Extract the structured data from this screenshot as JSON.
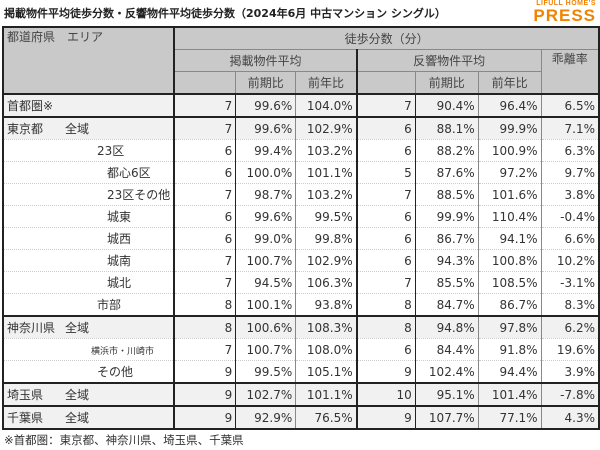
{
  "title": "掲載物件平均徒歩分数・反響物件平均徒歩分数（2024年6月 中古マンション シングル）",
  "logo": {
    "small": "LIFULL HOME'S",
    "big": "PRESS"
  },
  "header": {
    "area": "都道府県　エリア",
    "group": "徒歩分数（分）",
    "listed": "掲載物件平均",
    "response": "反響物件平均",
    "gap": "乖離率",
    "qoq": "前期比",
    "yoy": "前年比"
  },
  "rows": [
    {
      "pref": "首都圏※",
      "area": "",
      "indent": 0,
      "shade": true,
      "top": true,
      "v": [
        "7",
        "99.6%",
        "104.0%",
        "7",
        "90.4%",
        "96.4%",
        "6.5%"
      ]
    },
    {
      "pref": "東京都",
      "area": "全域",
      "indent": 0,
      "shade": true,
      "top": true,
      "v": [
        "7",
        "99.6%",
        "102.9%",
        "6",
        "88.1%",
        "99.9%",
        "7.1%"
      ]
    },
    {
      "pref": "",
      "area": "23区",
      "indent": 1,
      "v": [
        "6",
        "99.4%",
        "103.2%",
        "6",
        "88.2%",
        "100.9%",
        "6.3%"
      ]
    },
    {
      "pref": "",
      "area": "都心6区",
      "indent": 2,
      "v": [
        "6",
        "100.0%",
        "101.1%",
        "5",
        "87.6%",
        "97.2%",
        "9.7%"
      ]
    },
    {
      "pref": "",
      "area": "23区その他",
      "indent": 2,
      "v": [
        "7",
        "98.7%",
        "103.2%",
        "7",
        "88.5%",
        "101.6%",
        "3.8%"
      ]
    },
    {
      "pref": "",
      "area": "城東",
      "indent": 2,
      "v": [
        "6",
        "99.6%",
        "99.5%",
        "6",
        "99.9%",
        "110.4%",
        "-0.4%"
      ]
    },
    {
      "pref": "",
      "area": "城西",
      "indent": 2,
      "v": [
        "6",
        "99.0%",
        "99.8%",
        "6",
        "86.7%",
        "94.1%",
        "6.6%"
      ]
    },
    {
      "pref": "",
      "area": "城南",
      "indent": 2,
      "v": [
        "7",
        "100.7%",
        "102.9%",
        "6",
        "94.3%",
        "100.8%",
        "10.2%"
      ]
    },
    {
      "pref": "",
      "area": "城北",
      "indent": 2,
      "v": [
        "7",
        "94.5%",
        "106.3%",
        "7",
        "85.5%",
        "108.5%",
        "-3.1%"
      ]
    },
    {
      "pref": "",
      "area": "市部",
      "indent": 1,
      "v": [
        "8",
        "100.1%",
        "93.8%",
        "8",
        "84.7%",
        "86.7%",
        "8.3%"
      ]
    },
    {
      "pref": "神奈川県",
      "area": "全域",
      "indent": 0,
      "shade": true,
      "top": true,
      "v": [
        "8",
        "100.6%",
        "108.3%",
        "8",
        "94.8%",
        "97.8%",
        "6.2%"
      ]
    },
    {
      "pref": "",
      "area": "横浜市・川崎市",
      "indent": 3,
      "v": [
        "7",
        "100.7%",
        "108.0%",
        "6",
        "84.4%",
        "91.8%",
        "19.6%"
      ]
    },
    {
      "pref": "",
      "area": "その他",
      "indent": 1,
      "v": [
        "9",
        "99.5%",
        "105.1%",
        "9",
        "102.4%",
        "94.4%",
        "3.9%"
      ]
    },
    {
      "pref": "埼玉県",
      "area": "全域",
      "indent": 0,
      "shade": true,
      "top": true,
      "v": [
        "9",
        "102.7%",
        "101.1%",
        "10",
        "95.1%",
        "101.4%",
        "-7.8%"
      ]
    },
    {
      "pref": "千葉県",
      "area": "全域",
      "indent": 0,
      "shade": true,
      "top": true,
      "v": [
        "9",
        "92.9%",
        "76.5%",
        "9",
        "107.7%",
        "77.1%",
        "4.3%"
      ]
    }
  ],
  "note": "※首都圏：東京都、神奈川県、埼玉県、千葉県"
}
